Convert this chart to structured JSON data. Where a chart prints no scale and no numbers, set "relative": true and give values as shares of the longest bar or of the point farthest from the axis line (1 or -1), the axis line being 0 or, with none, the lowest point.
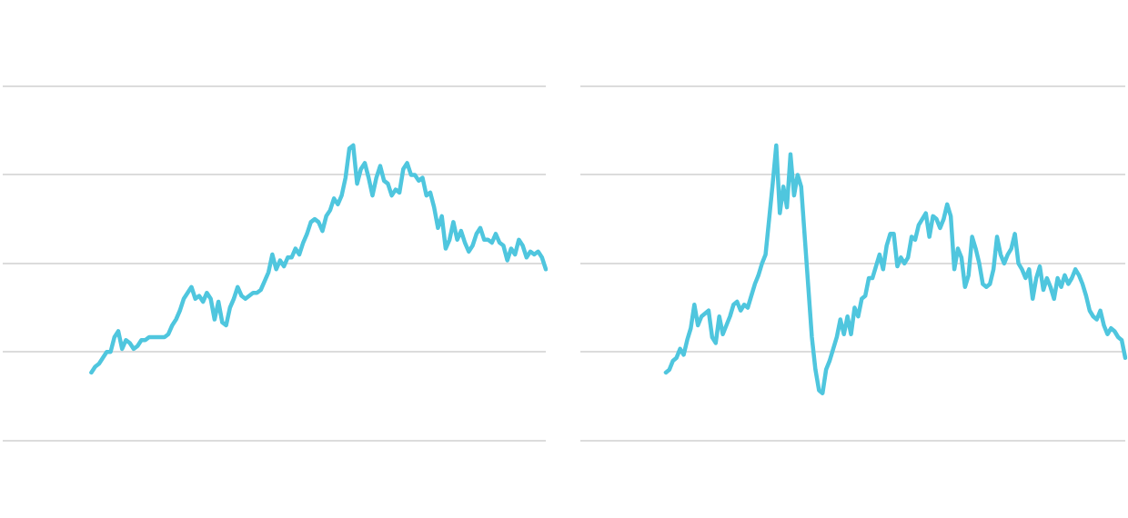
{
  "chart_data": [
    {
      "type": "line",
      "relative": true,
      "grid": "y",
      "legend": false,
      "marker": "none",
      "line_style": "solid",
      "categories": [
        null,
        null,
        null,
        null,
        null,
        null,
        null,
        null,
        null,
        null,
        null,
        null,
        null,
        null,
        null,
        null,
        null,
        null,
        null,
        null,
        null,
        null,
        null,
        null,
        null,
        null,
        null,
        null,
        null,
        null,
        null,
        null,
        null,
        null,
        null,
        null,
        null,
        null,
        null,
        null,
        null,
        null,
        null,
        null,
        null,
        null,
        null,
        null,
        null,
        null,
        null,
        null,
        null,
        null,
        null,
        null,
        null,
        null,
        null,
        null,
        null,
        null,
        null,
        null,
        null,
        null,
        null,
        null,
        null,
        null,
        null,
        null,
        null,
        null,
        null,
        null,
        null,
        null,
        null,
        null,
        null,
        null,
        null,
        null,
        null,
        null,
        null,
        null,
        null,
        null,
        null,
        null,
        null,
        null,
        null,
        null,
        null,
        null,
        null,
        null,
        null,
        null,
        null,
        null,
        null,
        null,
        null,
        null,
        null,
        null,
        null,
        null,
        null,
        null,
        null,
        null,
        null,
        null,
        null,
        null,
        null,
        null,
        null,
        null,
        null,
        null,
        null,
        null,
        null,
        null,
        null,
        null,
        null,
        null,
        null,
        null,
        null,
        null,
        null,
        null,
        null,
        null
      ],
      "series": [
        {
          "color": "#4fc6de",
          "values": [
            null,
            null,
            null,
            null,
            null,
            null,
            null,
            null,
            null,
            null,
            null,
            null,
            null,
            null,
            null,
            null,
            null,
            null,
            null,
            null,
            null,
            null,
            null,
            0.23,
            0.25,
            0.26,
            0.28,
            0.3,
            0.3,
            0.35,
            0.37,
            0.31,
            0.34,
            0.33,
            0.31,
            0.32,
            0.34,
            0.34,
            0.35,
            0.35,
            0.35,
            0.35,
            0.35,
            0.36,
            0.39,
            0.41,
            0.44,
            0.48,
            0.5,
            0.52,
            0.48,
            0.49,
            0.47,
            0.5,
            0.48,
            0.41,
            0.47,
            0.4,
            0.39,
            0.45,
            0.48,
            0.52,
            0.49,
            0.48,
            0.49,
            0.5,
            0.5,
            0.51,
            0.54,
            0.57,
            0.63,
            0.58,
            0.61,
            0.59,
            0.62,
            0.62,
            0.65,
            0.63,
            0.67,
            0.7,
            0.74,
            0.75,
            0.74,
            0.71,
            0.76,
            0.78,
            0.82,
            0.8,
            0.83,
            0.89,
            0.99,
            1,
            0.87,
            0.92,
            0.94,
            0.89,
            0.83,
            0.89,
            0.93,
            0.88,
            0.87,
            0.83,
            0.85,
            0.84,
            0.92,
            0.94,
            0.9,
            0.9,
            0.88,
            0.89,
            0.83,
            0.84,
            0.79,
            0.72,
            0.76,
            0.65,
            0.68,
            0.74,
            0.68,
            0.71,
            0.67,
            0.64,
            0.66,
            0.7,
            0.72,
            0.68,
            0.68,
            0.67,
            0.7,
            0.67,
            0.66,
            0.61,
            0.65,
            0.63,
            0.68,
            0.66,
            0.62,
            0.64,
            0.63,
            0.64,
            0.62,
            0.58
          ]
        }
      ]
    },
    {
      "type": "line",
      "relative": true,
      "grid": "y",
      "legend": false,
      "marker": "none",
      "line_style": "solid",
      "categories": [
        null,
        null,
        null,
        null,
        null,
        null,
        null,
        null,
        null,
        null,
        null,
        null,
        null,
        null,
        null,
        null,
        null,
        null,
        null,
        null,
        null,
        null,
        null,
        null,
        null,
        null,
        null,
        null,
        null,
        null,
        null,
        null,
        null,
        null,
        null,
        null,
        null,
        null,
        null,
        null,
        null,
        null,
        null,
        null,
        null,
        null,
        null,
        null,
        null,
        null,
        null,
        null,
        null,
        null,
        null,
        null,
        null,
        null,
        null,
        null,
        null,
        null,
        null,
        null,
        null,
        null,
        null,
        null,
        null,
        null,
        null,
        null,
        null,
        null,
        null,
        null,
        null,
        null,
        null,
        null,
        null,
        null,
        null,
        null,
        null,
        null,
        null,
        null,
        null,
        null,
        null,
        null,
        null,
        null,
        null,
        null,
        null,
        null,
        null,
        null,
        null,
        null,
        null,
        null,
        null,
        null,
        null,
        null,
        null,
        null,
        null,
        null,
        null,
        null,
        null,
        null,
        null,
        null,
        null,
        null,
        null,
        null,
        null,
        null,
        null,
        null,
        null,
        null,
        null,
        null,
        null,
        null,
        null,
        null,
        null,
        null,
        null,
        null,
        null,
        null,
        null,
        null,
        null,
        null,
        null,
        null,
        null,
        null,
        null,
        null,
        null,
        null,
        null,
        null
      ],
      "series": [
        {
          "color": "#4fc6de",
          "values": [
            null,
            null,
            null,
            null,
            null,
            null,
            null,
            null,
            null,
            null,
            null,
            null,
            null,
            null,
            null,
            null,
            null,
            null,
            null,
            null,
            null,
            null,
            null,
            null,
            0.23,
            0.24,
            0.27,
            0.28,
            0.31,
            0.29,
            0.34,
            0.38,
            0.46,
            0.39,
            0.42,
            0.43,
            0.44,
            0.35,
            0.33,
            0.42,
            0.36,
            0.39,
            0.42,
            0.46,
            0.47,
            0.44,
            0.46,
            0.45,
            0.49,
            0.53,
            0.56,
            0.6,
            0.63,
            0.75,
            0.87,
            1,
            0.77,
            0.86,
            0.79,
            0.97,
            0.83,
            0.9,
            0.86,
            0.69,
            0.52,
            0.35,
            0.24,
            0.17,
            0.16,
            0.24,
            0.27,
            0.31,
            0.35,
            0.41,
            0.36,
            0.42,
            0.36,
            0.45,
            0.42,
            0.48,
            0.49,
            0.55,
            0.55,
            0.59,
            0.63,
            0.58,
            0.66,
            0.7,
            0.7,
            0.59,
            0.62,
            0.6,
            0.62,
            0.69,
            0.68,
            0.73,
            0.75,
            0.77,
            0.69,
            0.76,
            0.75,
            0.72,
            0.75,
            0.8,
            0.76,
            0.58,
            0.65,
            0.62,
            0.52,
            0.56,
            0.69,
            0.65,
            0.6,
            0.53,
            0.52,
            0.53,
            0.58,
            0.69,
            0.63,
            0.6,
            0.63,
            0.65,
            0.7,
            0.6,
            0.58,
            0.55,
            0.58,
            0.48,
            0.55,
            0.59,
            0.51,
            0.55,
            0.52,
            0.48,
            0.55,
            0.52,
            0.56,
            0.53,
            0.55,
            0.58,
            0.56,
            0.53,
            0.49,
            0.44,
            0.42,
            0.41,
            0.44,
            0.39,
            0.36,
            0.38,
            0.37,
            0.35,
            0.34,
            0.28
          ]
        }
      ]
    }
  ]
}
